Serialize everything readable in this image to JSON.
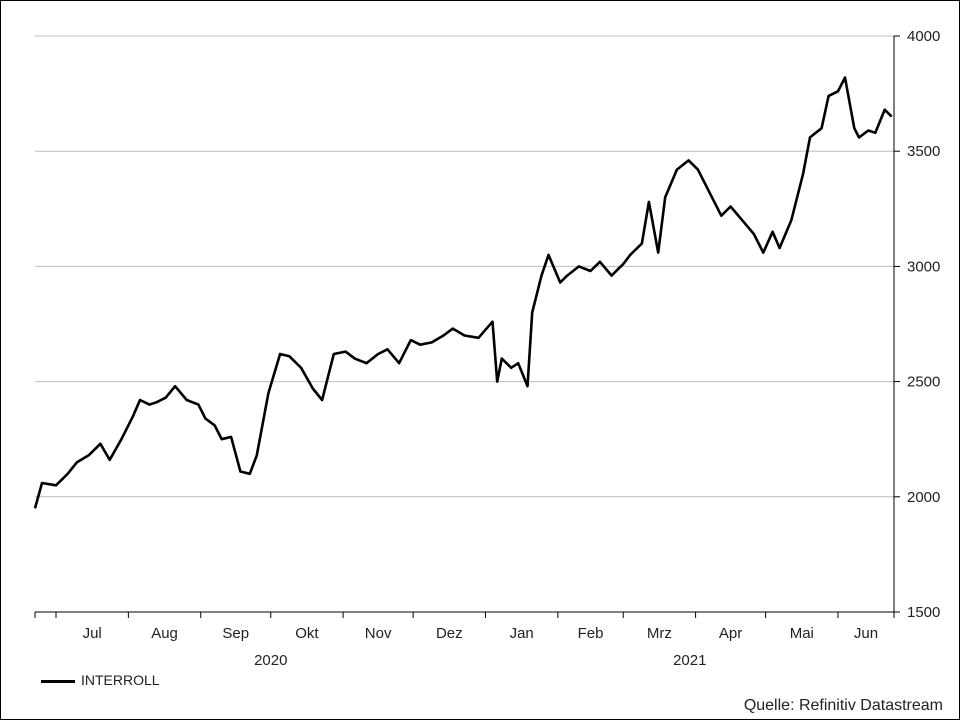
{
  "chart_data": {
    "type": "line",
    "title": "",
    "xlabel": "",
    "ylabel": "",
    "ylim": [
      1500,
      4000
    ],
    "yticks": [
      1500,
      2000,
      2500,
      3000,
      3500,
      4000
    ],
    "grid": "horizontal",
    "months": [
      "Jul",
      "Aug",
      "Sep",
      "Okt",
      "Nov",
      "Dez",
      "Jan",
      "Feb",
      "Mrz",
      "Apr",
      "Mai",
      "Jun"
    ],
    "years": [
      {
        "label": "2020",
        "month_start": "Jul",
        "month_end": "Dez"
      },
      {
        "label": "2021",
        "month_start": "Jan",
        "month_end": "Jun"
      }
    ],
    "legend": {
      "position": "bottom-left"
    },
    "source": "Quelle: Refinitiv Datastream",
    "series": [
      {
        "name": "INTERROLL",
        "color": "#000000",
        "x": [
          "2020-06-22",
          "2020-06-25",
          "2020-07-01",
          "2020-07-06",
          "2020-07-10",
          "2020-07-15",
          "2020-07-20",
          "2020-07-24",
          "2020-07-29",
          "2020-08-03",
          "2020-08-06",
          "2020-08-10",
          "2020-08-13",
          "2020-08-17",
          "2020-08-21",
          "2020-08-26",
          "2020-08-31",
          "2020-09-03",
          "2020-09-07",
          "2020-09-10",
          "2020-09-14",
          "2020-09-18",
          "2020-09-22",
          "2020-09-25",
          "2020-09-30",
          "2020-10-05",
          "2020-10-09",
          "2020-10-14",
          "2020-10-19",
          "2020-10-23",
          "2020-10-28",
          "2020-11-02",
          "2020-11-06",
          "2020-11-11",
          "2020-11-16",
          "2020-11-20",
          "2020-11-25",
          "2020-11-30",
          "2020-12-04",
          "2020-12-09",
          "2020-12-14",
          "2020-12-18",
          "2020-12-23",
          "2020-12-29",
          "2021-01-04",
          "2021-01-06",
          "2021-01-08",
          "2021-01-12",
          "2021-01-15",
          "2021-01-19",
          "2021-01-21",
          "2021-01-25",
          "2021-01-28",
          "2021-02-02",
          "2021-02-05",
          "2021-02-10",
          "2021-02-15",
          "2021-02-19",
          "2021-02-24",
          "2021-03-01",
          "2021-03-04",
          "2021-03-09",
          "2021-03-12",
          "2021-03-16",
          "2021-03-19",
          "2021-03-24",
          "2021-03-29",
          "2021-04-02",
          "2021-04-07",
          "2021-04-12",
          "2021-04-16",
          "2021-04-21",
          "2021-04-26",
          "2021-04-30",
          "2021-05-04",
          "2021-05-07",
          "2021-05-12",
          "2021-05-17",
          "2021-05-20",
          "2021-05-25",
          "2021-05-28",
          "2021-06-01",
          "2021-06-04",
          "2021-06-08",
          "2021-06-10",
          "2021-06-14",
          "2021-06-17",
          "2021-06-21",
          "2021-06-24"
        ],
        "values": [
          1950,
          2060,
          2050,
          2100,
          2150,
          2180,
          2230,
          2160,
          2250,
          2350,
          2420,
          2400,
          2410,
          2430,
          2480,
          2420,
          2400,
          2340,
          2310,
          2250,
          2260,
          2110,
          2100,
          2180,
          2450,
          2620,
          2610,
          2560,
          2470,
          2420,
          2620,
          2630,
          2600,
          2580,
          2620,
          2640,
          2580,
          2680,
          2660,
          2670,
          2700,
          2730,
          2700,
          2690,
          2760,
          2500,
          2600,
          2560,
          2580,
          2480,
          2800,
          2960,
          3050,
          2930,
          2960,
          3000,
          2980,
          3020,
          2960,
          3010,
          3050,
          3100,
          3280,
          3060,
          3300,
          3420,
          3460,
          3420,
          3320,
          3220,
          3260,
          3200,
          3140,
          3060,
          3150,
          3080,
          3200,
          3400,
          3560,
          3600,
          3740,
          3760,
          3820,
          3600,
          3560,
          3590,
          3580,
          3680,
          3650
        ]
      }
    ]
  }
}
